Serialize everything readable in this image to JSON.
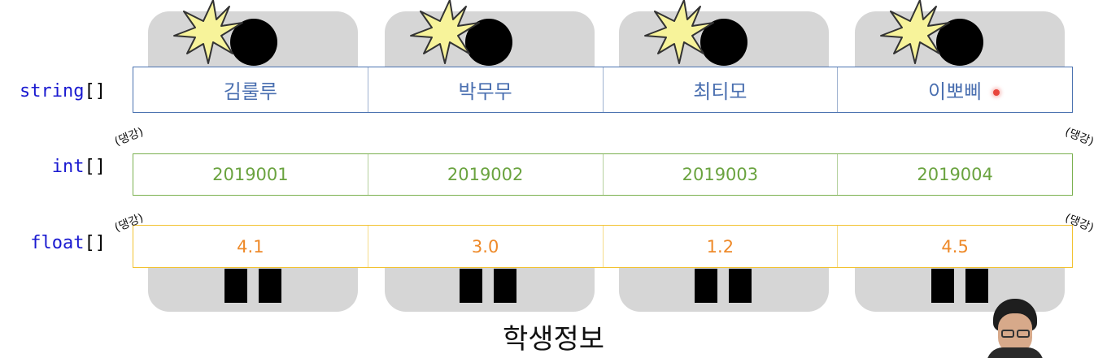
{
  "students": [
    {
      "name": "김룰루",
      "id": "2019001",
      "gpa": "4.1"
    },
    {
      "name": "박무무",
      "id": "2019002",
      "gpa": "3.0"
    },
    {
      "name": "최티모",
      "id": "2019003",
      "gpa": "1.2"
    },
    {
      "name": "이뽀삐",
      "id": "2019004",
      "gpa": "4.5"
    }
  ],
  "labels": {
    "string": "string",
    "int": "int",
    "float": "float",
    "brackets": "[]"
  },
  "notes": {
    "ttanggang": "(댕강)"
  },
  "caption": "학생정보",
  "colors": {
    "string_border": "#4a72b0",
    "int_border": "#7ab04e",
    "float_border": "#f2c230",
    "figure_fill": "#d6d6d6",
    "star_fill": "#f7f39a"
  }
}
